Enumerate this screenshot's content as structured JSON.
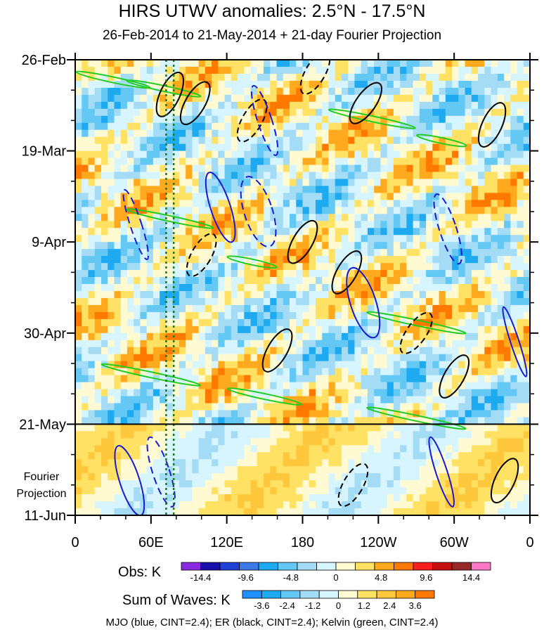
{
  "chart_data": {
    "type": "heatmap",
    "title": "HIRS UTWV anomalies: 2.5°N - 17.5°N",
    "subtitle": "26-Feb-2014 to 21-May-2014 + 21-day Fourier Projection",
    "x_ticks": [
      "0",
      "60E",
      "120E",
      "180",
      "120W",
      "60W",
      "0"
    ],
    "x_tick_values": [
      0,
      60,
      120,
      180,
      240,
      300,
      360
    ],
    "x_range": [
      0,
      360
    ],
    "y_ticks": [
      "26-Feb",
      "19-Mar",
      "9-Apr",
      "30-Apr",
      "21-May",
      "11-Jun"
    ],
    "y_tick_values": [
      "2014-02-26",
      "2014-03-19",
      "2014-04-09",
      "2014-04-30",
      "2014-05-21",
      "2014-06-11"
    ],
    "y_range": [
      "2014-02-26",
      "2014-06-11"
    ],
    "y_direction": "down",
    "projection_label": "Fourier\nProjection",
    "projection_start": "2014-05-21",
    "reference_lines_lon": [
      72,
      78
    ],
    "obs_colorbar": {
      "label": "Obs: K",
      "tick_labels": [
        "-14.4",
        "-9.6",
        "-4.8",
        "0",
        "4.8",
        "9.6",
        "14.4"
      ],
      "colors": [
        "#8a2be2",
        "#1a0fa8",
        "#1f3fd6",
        "#3c78e6",
        "#1eaaf0",
        "#64c8f5",
        "#a5dcf5",
        "#d7f5ff",
        "#fffad2",
        "#ffe164",
        "#ffaa1e",
        "#ff7800",
        "#ff1e1e",
        "#c80f0f",
        "#962828",
        "#ff78c8"
      ]
    },
    "waves_colorbar": {
      "label": "Sum of Waves: K",
      "tick_labels": [
        "-3.6",
        "-2.4",
        "-1.2",
        "0",
        "1.2",
        "2.4",
        "3.6"
      ],
      "colors": [
        "#1e90ff",
        "#1eaaf0",
        "#64c8f5",
        "#a5dcf5",
        "#d7f5ff",
        "#fffad2",
        "#ffe164",
        "#ffc83c",
        "#ffaa1e",
        "#ff7800"
      ]
    },
    "contour_legend": "MJO (blue, CINT=2.4); ER (black, CINT=2.4); Kelvin (green, CINT=2.4)",
    "contour_colors": {
      "MJO": "#1a1ad0",
      "ER": "#000000",
      "Kelvin": "#22cc22"
    }
  }
}
